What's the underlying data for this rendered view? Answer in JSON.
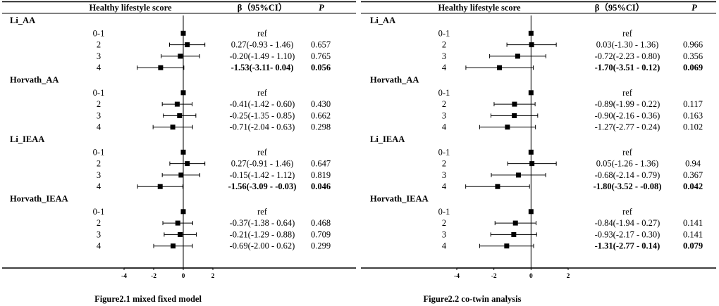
{
  "chart_data": [
    {
      "type": "forest",
      "caption": "Figure2.1 mixed fixed model",
      "header": {
        "score": "Healthy lifestyle score",
        "beta": "β（95%CI）",
        "p": "P"
      },
      "xlim": [
        -4,
        2
      ],
      "ticks": [
        "-4",
        "-2",
        "0",
        "2"
      ],
      "groups": [
        {
          "name": "Li_AA",
          "rows": [
            {
              "level": "0-1",
              "est": 0,
              "lo": 0,
              "hi": 0,
              "ci": "ref",
              "p": "",
              "bold": false
            },
            {
              "level": "2",
              "est": 0.27,
              "lo": -0.93,
              "hi": 1.46,
              "ci": "0.27(-0.93 - 1.46)",
              "p": "0.657",
              "bold": false
            },
            {
              "level": "3",
              "est": -0.2,
              "lo": -1.49,
              "hi": 1.1,
              "ci": "-0.20(-1.49 - 1.10)",
              "p": "0.765",
              "bold": false
            },
            {
              "level": "4",
              "est": -1.53,
              "lo": -3.11,
              "hi": 0.04,
              "ci": "-1.53(-3.11- 0.04)",
              "p": "0.056",
              "bold": true
            }
          ]
        },
        {
          "name": "Horvath_AA",
          "rows": [
            {
              "level": "0-1",
              "est": 0,
              "lo": 0,
              "hi": 0,
              "ci": "ref",
              "p": "",
              "bold": false
            },
            {
              "level": "2",
              "est": -0.41,
              "lo": -1.42,
              "hi": 0.6,
              "ci": "-0.41(-1.42 - 0.60)",
              "p": "0.430",
              "bold": false
            },
            {
              "level": "3",
              "est": -0.25,
              "lo": -1.35,
              "hi": 0.85,
              "ci": "-0.25(-1.35 - 0.85)",
              "p": "0.662",
              "bold": false
            },
            {
              "level": "4",
              "est": -0.71,
              "lo": -2.04,
              "hi": 0.63,
              "ci": "-0.71(-2.04 - 0.63)",
              "p": "0.298",
              "bold": false
            }
          ]
        },
        {
          "name": "Li_IEAA",
          "rows": [
            {
              "level": "0-1",
              "est": 0,
              "lo": 0,
              "hi": 0,
              "ci": "ref",
              "p": "",
              "bold": false
            },
            {
              "level": "2",
              "est": 0.27,
              "lo": -0.91,
              "hi": 1.46,
              "ci": "0.27(-0.91 - 1.46)",
              "p": "0.647",
              "bold": false
            },
            {
              "level": "3",
              "est": -0.15,
              "lo": -1.42,
              "hi": 1.12,
              "ci": "-0.15(-1.42 - 1.12)",
              "p": "0.819",
              "bold": false
            },
            {
              "level": "4",
              "est": -1.56,
              "lo": -3.09,
              "hi": -0.03,
              "ci": "-1.56(-3.09 - -0.03)",
              "p": "0.046",
              "bold": true
            }
          ]
        },
        {
          "name": "Horvath_IEAA",
          "rows": [
            {
              "level": "0-1",
              "est": 0,
              "lo": 0,
              "hi": 0,
              "ci": "ref",
              "p": "",
              "bold": false
            },
            {
              "level": "2",
              "est": -0.37,
              "lo": -1.38,
              "hi": 0.64,
              "ci": "-0.37(-1.38 - 0.64)",
              "p": "0.468",
              "bold": false
            },
            {
              "level": "3",
              "est": -0.21,
              "lo": -1.29,
              "hi": 0.88,
              "ci": "-0.21(-1.29 - 0.88)",
              "p": "0.709",
              "bold": false
            },
            {
              "level": "4",
              "est": -0.69,
              "lo": -2.0,
              "hi": 0.62,
              "ci": "-0.69(-2.00 - 0.62)",
              "p": "0.299",
              "bold": false
            }
          ]
        }
      ]
    },
    {
      "type": "forest",
      "caption": "Figure2.2 co-twin analysis",
      "header": {
        "score": "Healthy lifestyle score",
        "beta": "β（95%CI）",
        "p": "P"
      },
      "xlim": [
        -4,
        2
      ],
      "ticks": [
        "-4",
        "-2",
        "0",
        "2"
      ],
      "groups": [
        {
          "name": "Li_AA",
          "rows": [
            {
              "level": "0-1",
              "est": 0,
              "lo": 0,
              "hi": 0,
              "ci": "ref",
              "p": "",
              "bold": false
            },
            {
              "level": "2",
              "est": 0.03,
              "lo": -1.3,
              "hi": 1.36,
              "ci": "0.03(-1.30 - 1.36)",
              "p": "0.966",
              "bold": false
            },
            {
              "level": "3",
              "est": -0.72,
              "lo": -2.23,
              "hi": 0.8,
              "ci": "-0.72(-2.23 - 0.80)",
              "p": "0.356",
              "bold": false
            },
            {
              "level": "4",
              "est": -1.7,
              "lo": -3.51,
              "hi": 0.12,
              "ci": "-1.70(-3.51 - 0.12)",
              "p": "0.069",
              "bold": true
            }
          ]
        },
        {
          "name": "Horvath_AA",
          "rows": [
            {
              "level": "0-1",
              "est": 0,
              "lo": 0,
              "hi": 0,
              "ci": "ref",
              "p": "",
              "bold": false
            },
            {
              "level": "2",
              "est": -0.89,
              "lo": -1.99,
              "hi": 0.22,
              "ci": "-0.89(-1.99 - 0.22)",
              "p": "0.117",
              "bold": false
            },
            {
              "level": "3",
              "est": -0.9,
              "lo": -2.16,
              "hi": 0.36,
              "ci": "-0.90(-2.16 - 0.36)",
              "p": "0.163",
              "bold": false
            },
            {
              "level": "4",
              "est": -1.27,
              "lo": -2.77,
              "hi": 0.24,
              "ci": "-1.27(-2.77 - 0.24)",
              "p": "0.102",
              "bold": false
            }
          ]
        },
        {
          "name": "Li_IEAA",
          "rows": [
            {
              "level": "0-1",
              "est": 0,
              "lo": 0,
              "hi": 0,
              "ci": "ref",
              "p": "",
              "bold": false
            },
            {
              "level": "2",
              "est": 0.05,
              "lo": -1.26,
              "hi": 1.36,
              "ci": "0.05(-1.26 - 1.36)",
              "p": "0.94",
              "bold": false
            },
            {
              "level": "3",
              "est": -0.68,
              "lo": -2.14,
              "hi": 0.79,
              "ci": "-0.68(-2.14 - 0.79)",
              "p": "0.367",
              "bold": false
            },
            {
              "level": "4",
              "est": -1.8,
              "lo": -3.52,
              "hi": -0.08,
              "ci": "-1.80(-3.52 - -0.08)",
              "p": "0.042",
              "bold": true
            }
          ]
        },
        {
          "name": "Horvath_IEAA",
          "rows": [
            {
              "level": "0-1",
              "est": 0,
              "lo": 0,
              "hi": 0,
              "ci": "ref",
              "p": "",
              "bold": false
            },
            {
              "level": "2",
              "est": -0.84,
              "lo": -1.94,
              "hi": 0.27,
              "ci": "-0.84(-1.94 - 0.27)",
              "p": "0.141",
              "bold": false
            },
            {
              "level": "3",
              "est": -0.93,
              "lo": -2.17,
              "hi": 0.3,
              "ci": "-0.93(-2.17 - 0.30)",
              "p": "0.141",
              "bold": false
            },
            {
              "level": "4",
              "est": -1.31,
              "lo": -2.77,
              "hi": 0.14,
              "ci": "-1.31(-2.77 - 0.14)",
              "p": "0.079",
              "bold": true
            }
          ]
        }
      ]
    }
  ]
}
